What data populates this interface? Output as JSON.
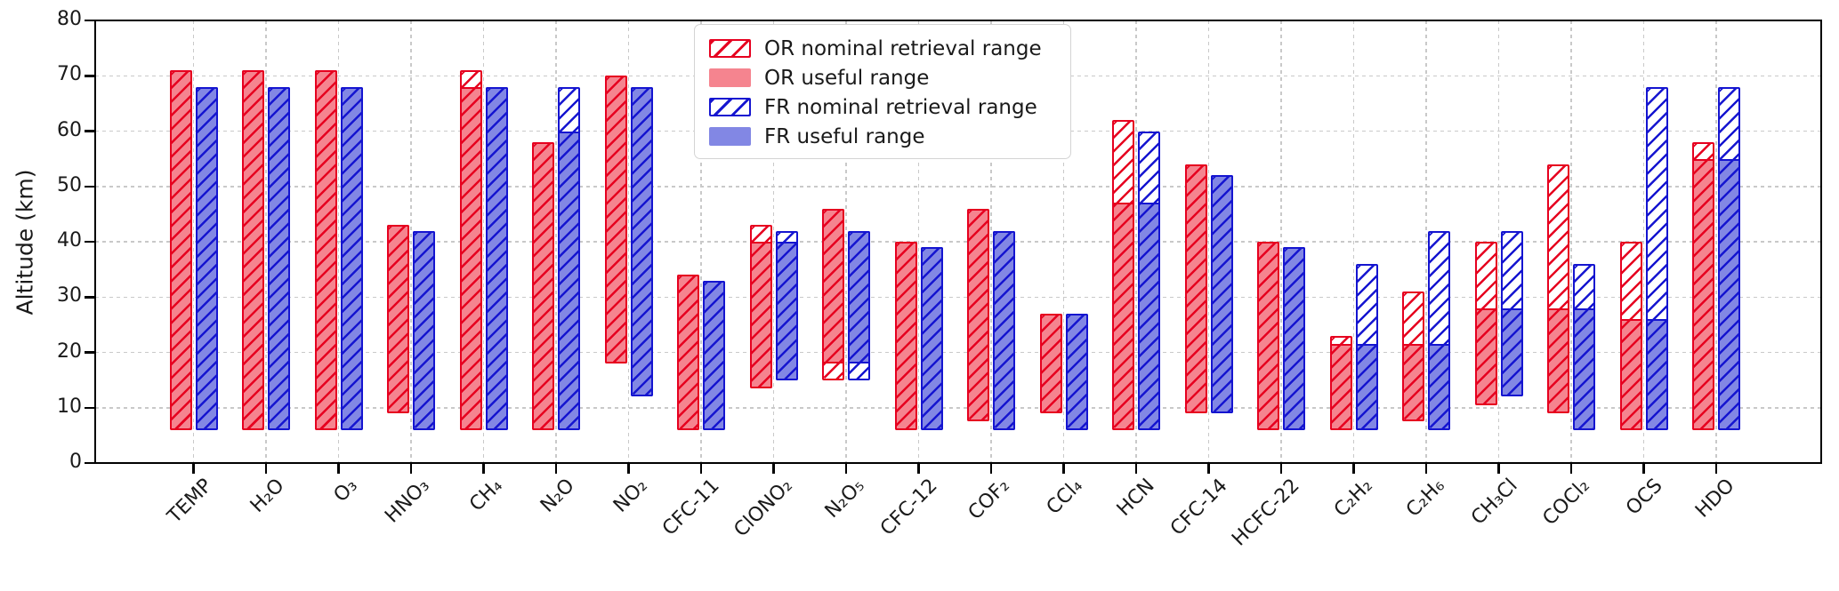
{
  "ylabel": "Altitude (km)",
  "colors": {
    "or_edge": "#e6001f",
    "or_fill": "#f5848f",
    "fr_edge": "#1515d0",
    "fr_fill": "#8287e4",
    "grid": "#c9c9c9",
    "axis": "#000000"
  },
  "legend": {
    "items": [
      {
        "label": "OR nominal retrieval range",
        "swatch": "or-hatch"
      },
      {
        "label": "OR useful range",
        "swatch": "or-fill"
      },
      {
        "label": "FR nominal retrieval range",
        "swatch": "fr-hatch"
      },
      {
        "label": "FR useful range",
        "swatch": "fr-fill"
      }
    ]
  },
  "chart_data": {
    "type": "bar",
    "title": "",
    "xlabel": "",
    "ylabel": "Altitude (km)",
    "ylim": [
      0,
      80
    ],
    "yticks": [
      0,
      10,
      20,
      30,
      40,
      50,
      60,
      70,
      80
    ],
    "grid": true,
    "legend_position": "upper left-center inside plot",
    "bar_style": "vertical altitude-range bars (bottom,top in km); nominal range drawn as hatched outline, useful range as solid fill overlaid by hatch",
    "categories": [
      "TEMP",
      "H₂O",
      "O₃",
      "HNO₃",
      "CH₄",
      "N₂O",
      "NO₂",
      "CFC-11",
      "ClONO₂",
      "N₂O₅",
      "CFC-12",
      "COF₂",
      "CCl₄",
      "HCN",
      "CFC-14",
      "HCFC-22",
      "C₂H₂",
      "C₂H₆",
      "CH₃Cl",
      "COCl₂",
      "OCS",
      "HDO"
    ],
    "series": [
      {
        "name": "OR nominal retrieval range",
        "ranges": [
          [
            6,
            71
          ],
          [
            6,
            71
          ],
          [
            6,
            71
          ],
          [
            9,
            43
          ],
          [
            6,
            71
          ],
          [
            6,
            58
          ],
          [
            18,
            70
          ],
          [
            6,
            34
          ],
          [
            13.5,
            43
          ],
          [
            15,
            46
          ],
          [
            6,
            40
          ],
          [
            7.5,
            46
          ],
          [
            9,
            27
          ],
          [
            6,
            62
          ],
          [
            9,
            54
          ],
          [
            6,
            40
          ],
          [
            6,
            23
          ],
          [
            7.5,
            31
          ],
          [
            10.5,
            40
          ],
          [
            9,
            54
          ],
          [
            6,
            40
          ],
          [
            6,
            58
          ]
        ]
      },
      {
        "name": "OR useful range",
        "ranges": [
          [
            6,
            71
          ],
          [
            6,
            71
          ],
          [
            6,
            71
          ],
          [
            9,
            43
          ],
          [
            6,
            68
          ],
          [
            6,
            58
          ],
          [
            18,
            70
          ],
          [
            6,
            34
          ],
          [
            13.5,
            40
          ],
          [
            18,
            46
          ],
          [
            6,
            40
          ],
          [
            7.5,
            46
          ],
          [
            9,
            27
          ],
          [
            6,
            47
          ],
          [
            9,
            54
          ],
          [
            6,
            40
          ],
          [
            6,
            21.5
          ],
          [
            7.5,
            21.5
          ],
          [
            10.5,
            28
          ],
          [
            9,
            28
          ],
          [
            6,
            26
          ],
          [
            6,
            55
          ]
        ]
      },
      {
        "name": "FR nominal retrieval range",
        "ranges": [
          [
            6,
            68
          ],
          [
            6,
            68
          ],
          [
            6,
            68
          ],
          [
            6,
            42
          ],
          [
            6,
            68
          ],
          [
            6,
            68
          ],
          [
            12,
            68
          ],
          [
            6,
            33
          ],
          [
            15,
            42
          ],
          [
            15,
            42
          ],
          [
            6,
            39
          ],
          [
            6,
            42
          ],
          [
            6,
            27
          ],
          [
            6,
            60
          ],
          [
            9,
            52
          ],
          [
            6,
            39
          ],
          [
            6,
            36
          ],
          [
            6,
            42
          ],
          [
            12,
            42
          ],
          [
            6,
            36
          ],
          [
            6,
            68
          ],
          [
            6,
            68
          ]
        ]
      },
      {
        "name": "FR useful range",
        "ranges": [
          [
            6,
            68
          ],
          [
            6,
            68
          ],
          [
            6,
            68
          ],
          [
            6,
            42
          ],
          [
            6,
            68
          ],
          [
            6,
            60
          ],
          [
            12,
            68
          ],
          [
            6,
            33
          ],
          [
            15,
            40
          ],
          [
            18,
            42
          ],
          [
            6,
            39
          ],
          [
            6,
            42
          ],
          [
            6,
            27
          ],
          [
            6,
            47
          ],
          [
            9,
            52
          ],
          [
            6,
            39
          ],
          [
            6,
            21.5
          ],
          [
            6,
            21.5
          ],
          [
            12,
            28
          ],
          [
            6,
            28
          ],
          [
            6,
            26
          ],
          [
            6,
            55
          ]
        ]
      }
    ]
  }
}
